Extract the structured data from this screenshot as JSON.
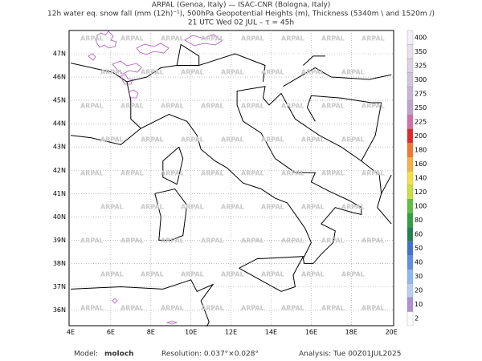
{
  "header": {
    "line1": "ARPAL (Genoa, Italy)  —  ISAC-CNR (Bologna, Italy)",
    "line2": "12h water eq. snow fall (mm (12h)⁻¹), 500hPa Geopotential Heights (m), Thickness (5340m \\ and 1520m /)",
    "line3": "21 UTC Wed 02 JUL  –  τ = 45h"
  },
  "map": {
    "lon_ticks": [
      "4E",
      "6E",
      "8E",
      "10E",
      "12E",
      "14E",
      "16E",
      "18E",
      "20E"
    ],
    "lat_ticks": [
      "47N",
      "46N",
      "45N",
      "44N",
      "43N",
      "42N",
      "41N",
      "40N",
      "39N",
      "38N",
      "37N",
      "36N"
    ],
    "watermark": "ARPAL"
  },
  "colorbar": {
    "labels": [
      "400",
      "350",
      "325",
      "300",
      "275",
      "250",
      "225",
      "200",
      "180",
      "160",
      "140",
      "120",
      "100",
      "80",
      "60",
      "50",
      "40",
      "30",
      "20",
      "10",
      "2"
    ],
    "colors": [
      "#f4eef6",
      "#e8e0ec",
      "#dcd2e2",
      "#d2c4da",
      "#c8b4d4",
      "#bca4ce",
      "#d46ea8",
      "#e02828",
      "#f07830",
      "#f8b040",
      "#f8e040",
      "#c8e040",
      "#60c040",
      "#30a040",
      "#208050",
      "#4070d0",
      "#6090e0",
      "#90b8f0",
      "#b8d0f0",
      "#b090d8",
      "#ffffff"
    ]
  },
  "footer": {
    "model_label": "Model:",
    "model": "moloch",
    "resolution": "Resolution: 0.037°×0.028°",
    "analysis": "Analysis: Tue 00Z01JUL2025"
  }
}
